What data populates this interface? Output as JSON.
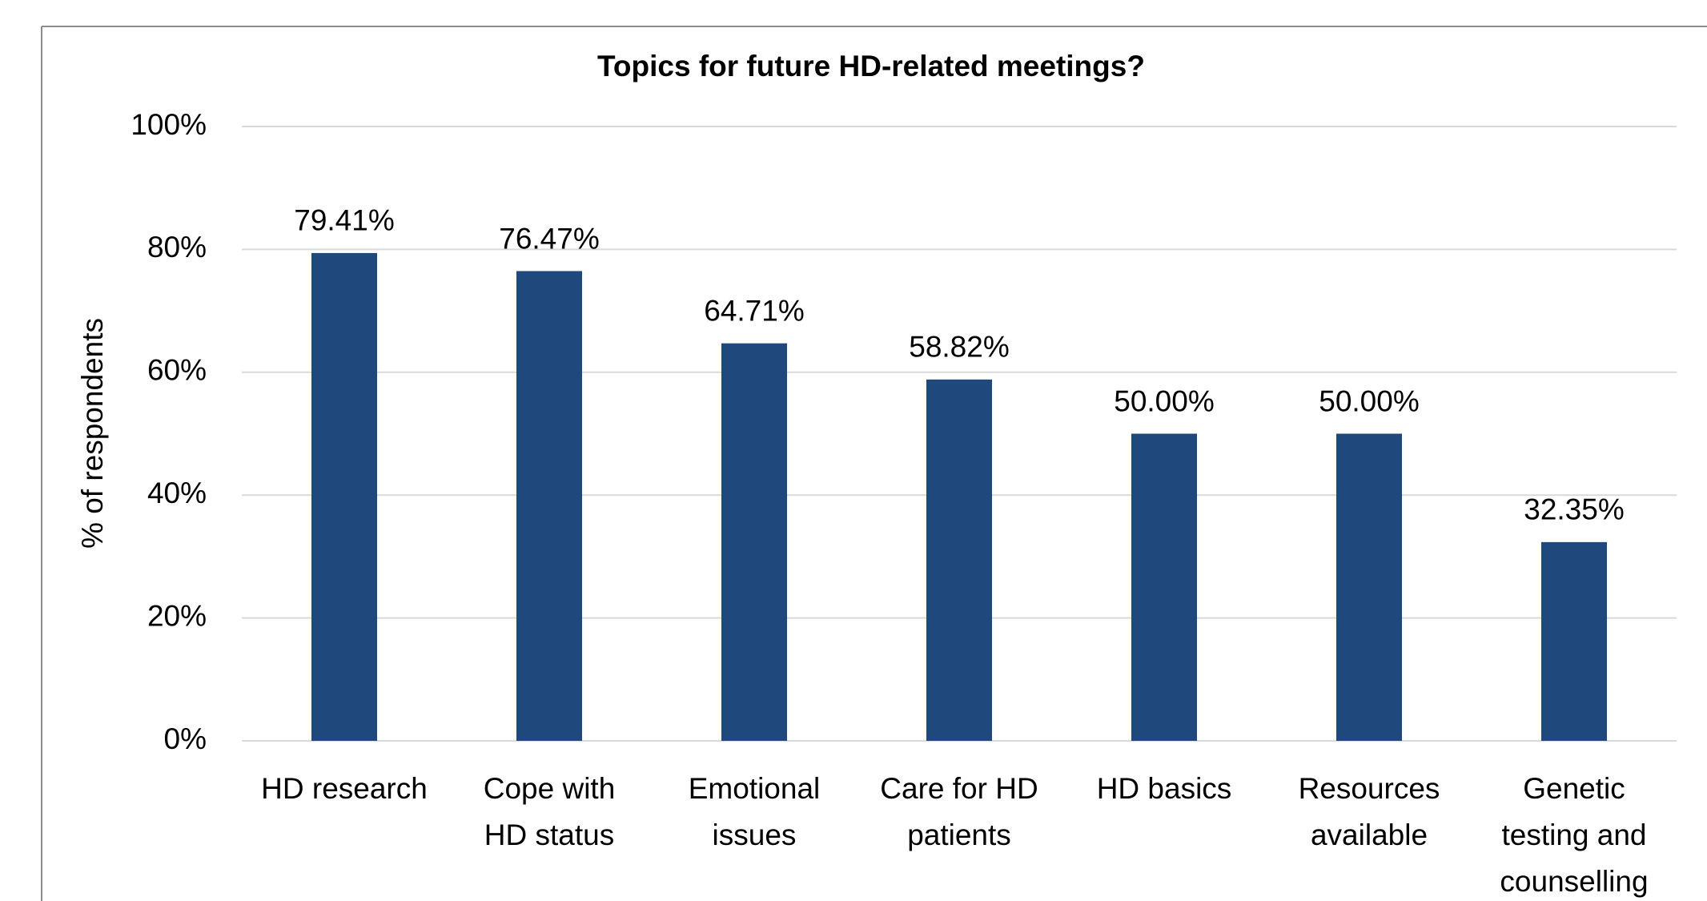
{
  "chart_data": {
    "type": "bar",
    "title": "Topics for future HD-related meetings?",
    "y_label": "% of respondents",
    "categories": [
      "HD research",
      "Cope with\nHD status",
      "Emotional\nissues",
      "Care for HD\npatients",
      "HD basics",
      "Resources\navailable",
      "Genetic\ntesting and\ncounselling"
    ],
    "values": [
      79.41,
      76.47,
      64.71,
      58.82,
      50.0,
      50.0,
      32.35
    ],
    "value_labels": [
      "79.41%",
      "76.47%",
      "64.71%",
      "58.82%",
      "50.00%",
      "50.00%",
      "32.35%"
    ],
    "color": "#1f497d",
    "ylim": [
      0,
      100
    ],
    "yticks": [
      {
        "value": 0,
        "label": "0%"
      },
      {
        "value": 20,
        "label": "20%"
      },
      {
        "value": 40,
        "label": "40%"
      },
      {
        "value": 60,
        "label": "60%"
      },
      {
        "value": 80,
        "label": "80%"
      },
      {
        "value": 100,
        "label": "100%"
      }
    ],
    "grid": true
  }
}
